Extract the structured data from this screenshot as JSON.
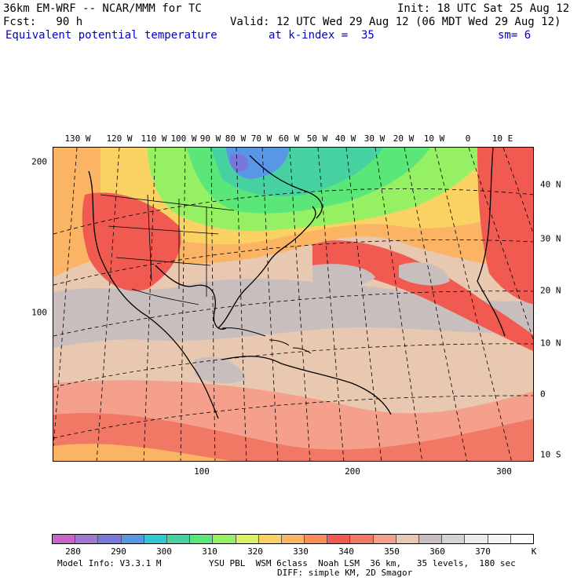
{
  "header": {
    "model_line": "36km EM-WRF -- NCAR/MMM for TC",
    "init_line": "Init: 18 UTC Sat 25 Aug 12",
    "fcst_line": "Fcst:   90 h",
    "valid_line": "Valid: 12 UTC Wed 29 Aug 12 (06 MDT Wed 29 Aug 12)",
    "field_name": "Equivalent potential temperature",
    "level": "at k-index =  35",
    "smoothing": "sm= 6"
  },
  "map": {
    "top_lon_labels": [
      "130 W",
      "120 W",
      "110 W",
      "100 W",
      "90 W",
      "80 W",
      "70 W",
      "60 W",
      "50 W",
      "40 W",
      "30 W",
      "20 W",
      "10 W",
      "0",
      "10 E"
    ],
    "right_lat_labels": [
      "40 N",
      "30 N",
      "20 N",
      "10 N",
      "0",
      "10 S"
    ],
    "left_grid_labels": [
      "200",
      "100"
    ],
    "bottom_grid_labels": [
      "100",
      "200",
      "300"
    ],
    "colors": {
      "c280": "#c864c8",
      "c285": "#a078d2",
      "c290": "#7878dc",
      "c295": "#5a96e6",
      "c300": "#32c8d2",
      "c305": "#46d2a0",
      "c310": "#5ae678",
      "c315": "#96f064",
      "c320": "#dcf064",
      "c325": "#fad264",
      "c330": "#fab464",
      "c335": "#fa8c5a",
      "c340": "#f05a50",
      "c345": "#f07864",
      "c350": "#f5a08c",
      "c355": "#e6c8b4",
      "c360": "#c8bebe",
      "c365": "#d7d2d2",
      "c370": "#ebebeb",
      "c375": "#f5f5f5",
      "c380": "#ffffff"
    }
  },
  "legend": {
    "labels": [
      "280",
      "290",
      "300",
      "310",
      "320",
      "330",
      "340",
      "350",
      "360",
      "370",
      "K"
    ],
    "swatch_colors": [
      "#c864c8",
      "#a078d2",
      "#7878dc",
      "#5a96e6",
      "#32c8d2",
      "#46d2a0",
      "#5ae678",
      "#96f064",
      "#dcf064",
      "#fad264",
      "#fab464",
      "#fa8c5a",
      "#f05a50",
      "#f07864",
      "#f5a08c",
      "#e6c8b4",
      "#c8bebe",
      "#d7d2d2",
      "#ebebeb",
      "#f5f5f5",
      "#ffffff"
    ]
  },
  "footer": {
    "model_info": "Model Info: V3.3.1 M",
    "physics": "YSU PBL  WSM 6class  Noah LSM  36 km,   35 levels,  180 sec",
    "diffusion": "DIFF: simple KM, 2D Smagor"
  }
}
